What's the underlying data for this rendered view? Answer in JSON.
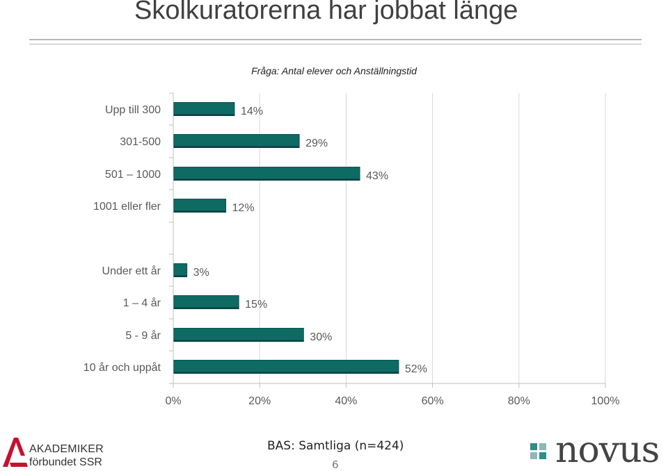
{
  "slide": {
    "title": "Skolkuratorerna har jobbat länge",
    "question": "Fråga: Antal elever och Anställningstid",
    "base": "BAS: Samtliga (n=424)",
    "page_number": "6"
  },
  "logos": {
    "left_line1": "AKADEMIKER",
    "left_line2": "förbundet SSR",
    "left_icon": "akademiker-a-mark",
    "right_word": "novus",
    "right_icon": "novus-squares-mark"
  },
  "colors": {
    "bar": "#0e6b64",
    "bar_edge": "#0a524c",
    "grid": "#d9d9d9",
    "tick_text": "#595959",
    "akademiker_red": "#c8102e",
    "novus_teal": "#2b8f8a",
    "novus_light": "#8fb8b4"
  },
  "chart_data": {
    "type": "bar",
    "orientation": "horizontal",
    "categories": [
      "Upp till 300",
      "301-500",
      "501 – 1000",
      "1001 eller fler",
      "Under ett år",
      "1 – 4 år",
      "5 - 9 år",
      "10 år och uppåt"
    ],
    "values": [
      14,
      29,
      43,
      12,
      3,
      15,
      30,
      52
    ],
    "data_labels": [
      "14%",
      "29%",
      "43%",
      "12%",
      "3%",
      "15%",
      "30%",
      "52%"
    ],
    "groups": [
      {
        "categories": [
          "Upp till 300",
          "301-500",
          "501 – 1000",
          "1001 eller fler"
        ]
      },
      {
        "categories": [
          "Under ett år",
          "1 – 4 år",
          "5 - 9 år",
          "10 år och uppåt"
        ]
      }
    ],
    "xlim": [
      0,
      100
    ],
    "xticks": [
      0,
      20,
      40,
      60,
      80,
      100
    ],
    "xtick_labels": [
      "0%",
      "20%",
      "40%",
      "60%",
      "80%",
      "100%"
    ],
    "grid": true,
    "legend": "none"
  }
}
